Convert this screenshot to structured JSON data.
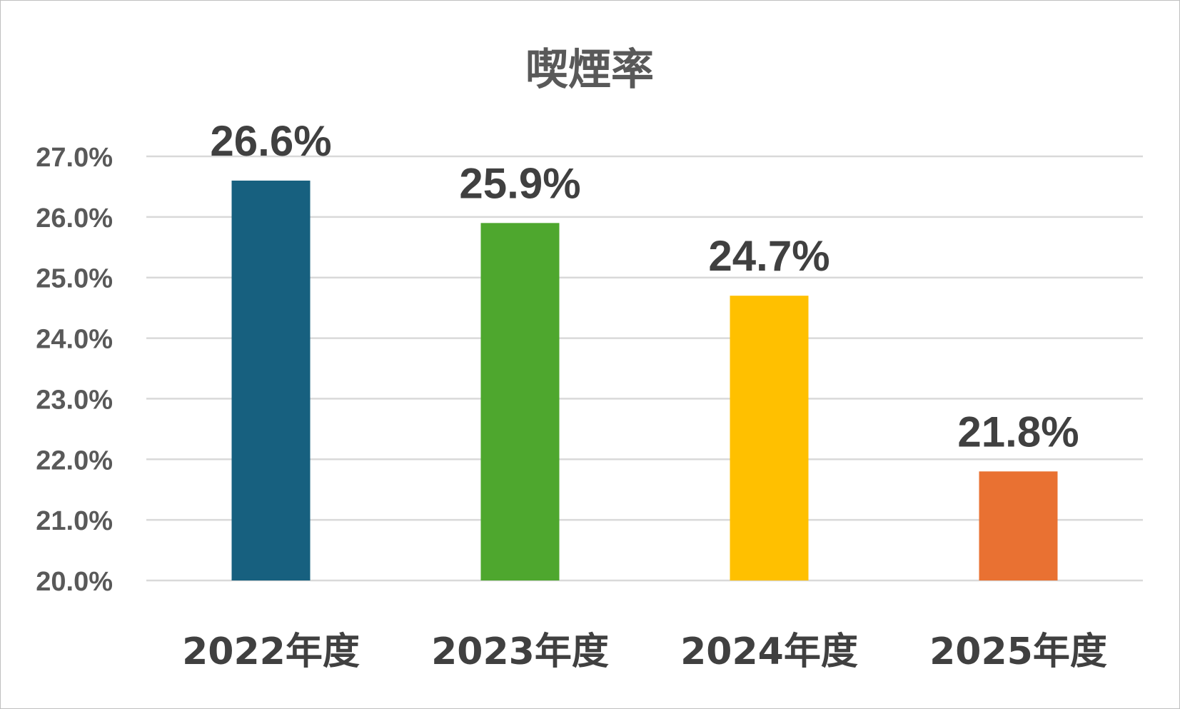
{
  "chart_data": {
    "type": "bar",
    "title": "喫煙率",
    "categories": [
      "2022年度",
      "2023年度",
      "2024年度",
      "2025年度"
    ],
    "values": [
      26.6,
      25.9,
      24.7,
      21.8
    ],
    "data_labels": [
      "26.6%",
      "25.9%",
      "24.7%",
      "21.8%"
    ],
    "colors": [
      "#17607F",
      "#4EA72E",
      "#FFC000",
      "#E97132"
    ],
    "ylim": [
      20.0,
      27.0
    ],
    "y_ticks": [
      "20.0%",
      "21.0%",
      "22.0%",
      "23.0%",
      "24.0%",
      "25.0%",
      "26.0%",
      "27.0%"
    ],
    "xlabel": "",
    "ylabel": "",
    "grid": true,
    "legend": "none"
  }
}
